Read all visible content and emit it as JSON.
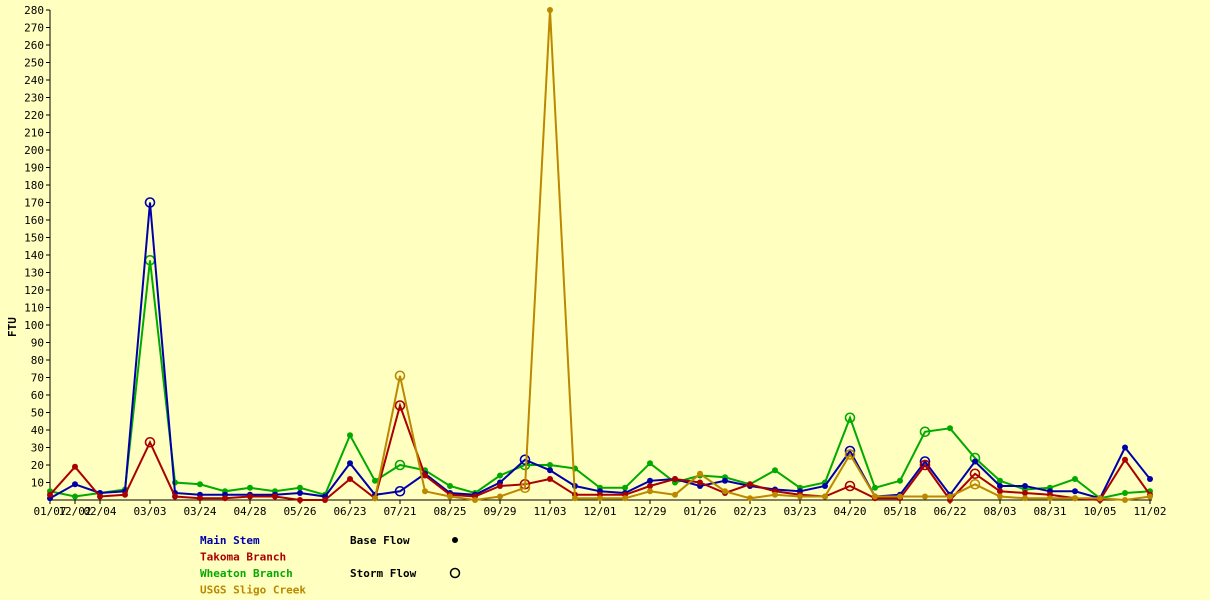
{
  "chart_data": {
    "type": "line",
    "ylabel": "FTU",
    "ylim": [
      0,
      280
    ],
    "yticks": [
      10,
      20,
      30,
      40,
      50,
      60,
      70,
      80,
      90,
      100,
      110,
      120,
      130,
      140,
      150,
      160,
      170,
      180,
      190,
      200,
      210,
      220,
      230,
      240,
      250,
      260,
      270,
      280
    ],
    "x_tick_labels": [
      "01/07",
      "12/02",
      "02/04",
      "03/03",
      "03/24",
      "04/28",
      "05/26",
      "06/23",
      "07/21",
      "08/25",
      "09/29",
      "11/03",
      "12/01",
      "12/29",
      "01/26",
      "02/23",
      "03/23",
      "04/20",
      "05/18",
      "06/22",
      "08/03",
      "08/31",
      "10/05",
      "11/02"
    ],
    "x_tick_index": [
      0,
      1,
      2,
      4,
      6,
      8,
      10,
      12,
      14,
      16,
      18,
      20,
      22,
      24,
      26,
      28,
      30,
      32,
      34,
      36,
      38,
      40,
      42,
      44
    ],
    "grid": false,
    "legend": {
      "placement": "bottom",
      "base_flow_label": "Base Flow",
      "storm_flow_label": "Storm Flow"
    },
    "series": [
      {
        "name": "Main Stem",
        "color": "#0000aa",
        "values": [
          1,
          9,
          4,
          5,
          170,
          4,
          3,
          3,
          3,
          3,
          4,
          2,
          21,
          3,
          5,
          15,
          4,
          3,
          10,
          23,
          17,
          8,
          5,
          4,
          11,
          12,
          8,
          11,
          8,
          6,
          5,
          8,
          28,
          2,
          3,
          22,
          3,
          22,
          8,
          8,
          5,
          5,
          1,
          30,
          12
        ],
        "storm": [
          0,
          0,
          0,
          0,
          1,
          0,
          0,
          0,
          0,
          0,
          0,
          0,
          0,
          0,
          1,
          0,
          0,
          0,
          0,
          1,
          0,
          0,
          0,
          0,
          0,
          0,
          0,
          0,
          0,
          0,
          0,
          0,
          1,
          0,
          0,
          1,
          0,
          0,
          0,
          0,
          0,
          0,
          0,
          0,
          0
        ]
      },
      {
        "name": "Takoma Branch",
        "color": "#aa0000",
        "values": [
          3,
          19,
          2,
          3,
          33,
          2,
          1,
          1,
          2,
          2,
          0,
          0,
          12,
          1,
          54,
          14,
          3,
          2,
          8,
          9,
          12,
          3,
          3,
          3,
          8,
          12,
          10,
          4,
          9,
          5,
          3,
          2,
          8,
          1,
          1,
          20,
          0,
          15,
          5,
          4,
          3,
          1,
          0,
          23,
          3
        ],
        "storm": [
          0,
          0,
          0,
          0,
          1,
          0,
          0,
          0,
          0,
          0,
          0,
          0,
          0,
          0,
          1,
          0,
          0,
          0,
          0,
          1,
          0,
          0,
          0,
          0,
          0,
          0,
          0,
          0,
          0,
          0,
          0,
          0,
          1,
          0,
          0,
          1,
          0,
          1,
          0,
          0,
          0,
          0,
          0,
          0,
          0
        ]
      },
      {
        "name": "Wheaton Branch",
        "color": "#00aa00",
        "values": [
          5,
          2,
          4,
          6,
          137,
          10,
          9,
          5,
          7,
          5,
          7,
          3,
          37,
          11,
          20,
          17,
          8,
          4,
          14,
          20,
          20,
          18,
          7,
          7,
          21,
          10,
          14,
          13,
          9,
          17,
          7,
          10,
          47,
          7,
          11,
          39,
          41,
          24,
          11,
          6,
          7,
          12,
          1,
          4,
          5
        ],
        "storm": [
          0,
          0,
          0,
          0,
          1,
          0,
          0,
          0,
          0,
          0,
          0,
          0,
          0,
          0,
          1,
          0,
          0,
          0,
          0,
          1,
          0,
          0,
          0,
          0,
          0,
          0,
          0,
          0,
          0,
          0,
          0,
          0,
          1,
          0,
          0,
          1,
          0,
          1,
          0,
          0,
          0,
          0,
          0,
          0,
          0
        ]
      },
      {
        "name": "USGS Sligo Creek",
        "color": "#bb8800",
        "values": [
          null,
          null,
          null,
          null,
          null,
          null,
          null,
          null,
          null,
          null,
          null,
          null,
          null,
          1,
          71,
          5,
          2,
          0,
          2,
          7,
          280,
          1,
          1,
          1,
          5,
          3,
          15,
          5,
          1,
          3,
          2,
          2,
          26,
          2,
          2,
          2,
          2,
          9,
          2,
          1,
          1,
          1,
          1,
          0,
          2
        ],
        "storm": [
          0,
          0,
          0,
          0,
          0,
          0,
          0,
          0,
          0,
          0,
          0,
          0,
          0,
          0,
          1,
          0,
          0,
          0,
          0,
          1,
          0,
          0,
          0,
          0,
          0,
          0,
          0,
          0,
          0,
          0,
          0,
          0,
          1,
          0,
          0,
          0,
          0,
          1,
          0,
          0,
          0,
          0,
          0,
          0,
          0
        ]
      }
    ]
  }
}
